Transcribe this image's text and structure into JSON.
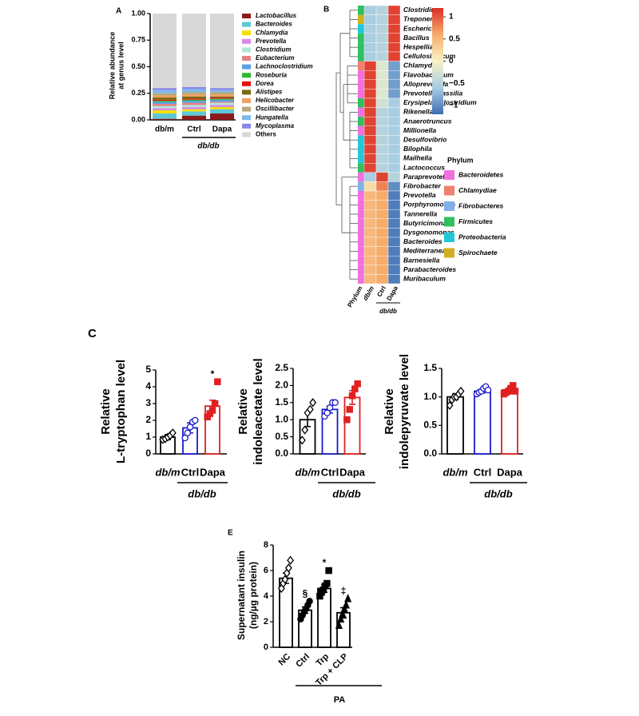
{
  "chart_data": [
    {
      "type": "stacked_bar",
      "panel": "A",
      "ylabel": [
        "Relative abundance",
        "at genus level"
      ],
      "categories": [
        "db/m",
        "Ctrl",
        "Dapa"
      ],
      "group_label": "db/db",
      "ylim": [
        0,
        1
      ],
      "yticks": [
        {
          "value": 0,
          "label": "0.00"
        },
        {
          "value": 0.25,
          "label": "0.25"
        },
        {
          "value": 0.5,
          "label": "0.50"
        },
        {
          "value": 0.75,
          "label": "0.75"
        },
        {
          "value": 1,
          "label": "1.00"
        }
      ],
      "series": [
        {
          "name": "Lactobacillus",
          "color": "#8b1a1a",
          "values": [
            0.01,
            0.04,
            0.06
          ]
        },
        {
          "name": "Bacteroides",
          "color": "#5bc8d8",
          "values": [
            0.05,
            0.04,
            0.04
          ]
        },
        {
          "name": "Chlamydia",
          "color": "#f5e000",
          "values": [
            0.03,
            0.02,
            0.02
          ]
        },
        {
          "name": "Prevotella",
          "color": "#d988e8",
          "values": [
            0.02,
            0.02,
            0.02
          ]
        },
        {
          "name": "Clostridium",
          "color": "#b0e8d8",
          "values": [
            0.02,
            0.02,
            0.02
          ]
        },
        {
          "name": "Eubacterium",
          "color": "#e88080",
          "values": [
            0.02,
            0.02,
            0.01
          ]
        },
        {
          "name": "Lachnoclostridium",
          "color": "#5aa0e0",
          "values": [
            0.02,
            0.02,
            0.02
          ]
        },
        {
          "name": "Roseburia",
          "color": "#2db82d",
          "values": [
            0.01,
            0.01,
            0.01
          ]
        },
        {
          "name": "Dorea",
          "color": "#e81010",
          "values": [
            0.01,
            0.01,
            0.01
          ]
        },
        {
          "name": "Alistipes",
          "color": "#7a6a10",
          "values": [
            0.02,
            0.02,
            0.01
          ]
        },
        {
          "name": "Helicobacter",
          "color": "#f0a060",
          "values": [
            0.02,
            0.02,
            0.02
          ]
        },
        {
          "name": "Oscillibacter",
          "color": "#b8a878",
          "values": [
            0.02,
            0.02,
            0.02
          ]
        },
        {
          "name": "Hungatella",
          "color": "#80b8e8",
          "values": [
            0.03,
            0.03,
            0.02
          ]
        },
        {
          "name": "Mycoplasma",
          "color": "#8888e8",
          "values": [
            0.02,
            0.02,
            0.02
          ]
        },
        {
          "name": "Others",
          "color": "#d8d8d8",
          "values": [
            0.7,
            0.69,
            0.7
          ]
        }
      ]
    },
    {
      "type": "heatmap",
      "panel": "B",
      "columns": [
        "Phylum",
        "db/m",
        "Ctrl",
        "Dapa"
      ],
      "group_label": "db/db",
      "clim": [
        -1.2,
        1.2
      ],
      "cticks": [
        1,
        0.5,
        0,
        {
          "value": -0.5,
          "label": "−0.5"
        },
        {
          "value": -1,
          "label": "−1"
        }
      ],
      "colors": [
        "#3d6db3",
        "#a9cde2",
        "#f7f3c4",
        "#f7ac6c",
        "#dd2e26"
      ],
      "legend_title": "Phylum",
      "phyla": [
        {
          "name": "Bacteroidetes",
          "color": "#f070e0"
        },
        {
          "name": "Chlamydiae",
          "color": "#f08070"
        },
        {
          "name": "Fibrobacteres",
          "color": "#80b0e8"
        },
        {
          "name": "Firmicutes",
          "color": "#30c060"
        },
        {
          "name": "Proteobacteria",
          "color": "#20c8d8"
        },
        {
          "name": "Spirochaete",
          "color": "#d0b020"
        }
      ],
      "rows": [
        {
          "name": "Clostridium",
          "phylum": "Firmicutes",
          "values": [
            -0.6,
            -0.5,
            1.1
          ]
        },
        {
          "name": "Treponema",
          "phylum": "Spirochaete",
          "values": [
            -0.6,
            -0.5,
            1.1
          ]
        },
        {
          "name": "Escherichia",
          "phylum": "Proteobacteria",
          "values": [
            -0.6,
            -0.5,
            1.1
          ]
        },
        {
          "name": "Bacillus",
          "phylum": "Firmicutes",
          "values": [
            -0.6,
            -0.5,
            1.1
          ]
        },
        {
          "name": "Hespellia",
          "phylum": "Firmicutes",
          "values": [
            -0.6,
            -0.5,
            1.1
          ]
        },
        {
          "name": "Cellulosilyticum",
          "phylum": "Firmicutes",
          "values": [
            -0.6,
            -0.5,
            1.1
          ]
        },
        {
          "name": "Chlamydia",
          "phylum": "Chlamydiae",
          "values": [
            1.1,
            -0.2,
            -0.9
          ]
        },
        {
          "name": "Flavobacterium",
          "phylum": "Bacteroidetes",
          "values": [
            1.1,
            -0.2,
            -0.9
          ]
        },
        {
          "name": "Alloprevotella",
          "phylum": "Bacteroidetes",
          "values": [
            1.1,
            -0.2,
            -0.9
          ]
        },
        {
          "name": "Prevotellamassilia",
          "phylum": "Bacteroidetes",
          "values": [
            1.1,
            -0.2,
            -0.9
          ]
        },
        {
          "name": "Erysipelatoclostridium",
          "phylum": "Firmicutes",
          "values": [
            1.1,
            -0.3,
            -0.6
          ]
        },
        {
          "name": "Rikenella",
          "phylum": "Bacteroidetes",
          "values": [
            1.1,
            -0.5,
            -0.6
          ]
        },
        {
          "name": "Anaerotruncus",
          "phylum": "Firmicutes",
          "values": [
            1.1,
            -0.5,
            -0.6
          ]
        },
        {
          "name": "Millionella",
          "phylum": "Bacteroidetes",
          "values": [
            1.1,
            -0.5,
            -0.6
          ]
        },
        {
          "name": "Desulfovibrio",
          "phylum": "Proteobacteria",
          "values": [
            1.1,
            -0.5,
            -0.6
          ]
        },
        {
          "name": "Bilophila",
          "phylum": "Proteobacteria",
          "values": [
            1.1,
            -0.5,
            -0.6
          ]
        },
        {
          "name": "Mailhella",
          "phylum": "Proteobacteria",
          "values": [
            1.1,
            -0.5,
            -0.6
          ]
        },
        {
          "name": "Lactococcus",
          "phylum": "Firmicutes",
          "values": [
            1.1,
            -0.5,
            -0.6
          ]
        },
        {
          "name": "Paraprevotella",
          "phylum": "Bacteroidetes",
          "values": [
            -0.6,
            1.1,
            -0.5
          ]
        },
        {
          "name": "Fibrobacter",
          "phylum": "Fibrobacteres",
          "values": [
            0.2,
            0.8,
            -1.0
          ]
        },
        {
          "name": "Prevotella",
          "phylum": "Bacteroidetes",
          "values": [
            0.5,
            0.6,
            -1.1
          ]
        },
        {
          "name": "Porphyromonas",
          "phylum": "Bacteroidetes",
          "values": [
            0.5,
            0.6,
            -1.1
          ]
        },
        {
          "name": "Tannerella",
          "phylum": "Bacteroidetes",
          "values": [
            0.5,
            0.6,
            -1.1
          ]
        },
        {
          "name": "Butyricimonas",
          "phylum": "Bacteroidetes",
          "values": [
            0.5,
            0.6,
            -1.1
          ]
        },
        {
          "name": "Dysgonomonas",
          "phylum": "Bacteroidetes",
          "values": [
            0.5,
            0.6,
            -1.1
          ]
        },
        {
          "name": "Bacteroides",
          "phylum": "Bacteroidetes",
          "values": [
            0.5,
            0.6,
            -1.1
          ]
        },
        {
          "name": "Mediterranea",
          "phylum": "Bacteroidetes",
          "values": [
            0.5,
            0.6,
            -1.1
          ]
        },
        {
          "name": "Barnesiella",
          "phylum": "Bacteroidetes",
          "values": [
            0.5,
            0.6,
            -1.1
          ]
        },
        {
          "name": "Parabacteroides",
          "phylum": "Bacteroidetes",
          "values": [
            0.5,
            0.6,
            -1.1
          ]
        },
        {
          "name": "Muribaculum",
          "phylum": "Bacteroidetes",
          "values": [
            0.5,
            0.6,
            -1.1
          ]
        }
      ]
    },
    {
      "type": "bar_dot",
      "panel": "C",
      "ylabel": [
        "Relative",
        "L-tryptophan level"
      ],
      "categories": [
        "db/m",
        "Ctrl",
        "Dapa"
      ],
      "group_label": "db/db",
      "colors": [
        "#000000",
        "#1a1ac8",
        "#e02020"
      ],
      "markers": [
        "diamond-open",
        "circle-open",
        "square"
      ],
      "ylim": [
        0,
        5
      ],
      "yticks": [
        0,
        1,
        2,
        3,
        4,
        5
      ],
      "values": [
        1.0,
        1.55,
        2.85
      ],
      "errors": [
        0.15,
        0.3,
        0.35
      ],
      "points": [
        [
          0.85,
          0.9,
          1.0,
          1.1,
          1.25
        ],
        [
          0.95,
          1.25,
          1.6,
          1.9,
          2.0
        ],
        [
          2.2,
          2.4,
          2.6,
          3.0,
          4.3
        ]
      ],
      "annotations": [
        null,
        null,
        "*"
      ]
    },
    {
      "type": "bar_dot",
      "ylabel": [
        "Relative",
        "indoleacetate level"
      ],
      "categories": [
        "db/m",
        "Ctrl",
        "Dapa"
      ],
      "group_label": "db/db",
      "colors": [
        "#000000",
        "#1a1ac8",
        "#e02020"
      ],
      "markers": [
        "diamond-open",
        "circle-open",
        "square"
      ],
      "ylim": [
        0,
        2.5
      ],
      "yticks": [
        {
          "value": 0,
          "label": "0.0"
        },
        0.5,
        {
          "value": 1,
          "label": "1.0"
        },
        1.5,
        {
          "value": 2,
          "label": "2.0"
        },
        2.5
      ],
      "values": [
        1.0,
        1.3,
        1.65
      ],
      "errors": [
        0.2,
        0.1,
        0.2
      ],
      "points": [
        [
          0.4,
          0.7,
          1.2,
          1.3,
          1.5
        ],
        [
          1.1,
          1.2,
          1.35,
          1.5,
          1.5
        ],
        [
          1.0,
          1.3,
          1.7,
          1.9,
          2.05
        ]
      ],
      "annotations": [
        null,
        null,
        null
      ]
    },
    {
      "type": "bar_dot",
      "ylabel": [
        "Relative",
        "indolepyruvate level"
      ],
      "categories": [
        "db/m",
        "Ctrl",
        "Dapa"
      ],
      "group_label": "db/db",
      "colors": [
        "#000000",
        "#1a1ac8",
        "#e02020"
      ],
      "markers": [
        "diamond-open",
        "circle-open",
        "square"
      ],
      "ylim": [
        0,
        1.5
      ],
      "yticks": [
        {
          "value": 0,
          "label": "0.0"
        },
        0.5,
        {
          "value": 1,
          "label": "1.0"
        },
        1.5
      ],
      "values": [
        1.0,
        1.1,
        1.12
      ],
      "errors": [
        0.05,
        0.03,
        0.04
      ],
      "points": [
        [
          0.85,
          0.95,
          1.0,
          1.0,
          1.05,
          1.1
        ],
        [
          1.05,
          1.08,
          1.1,
          1.15,
          1.18,
          1.12
        ],
        [
          1.05,
          1.08,
          1.1,
          1.15,
          1.2,
          1.1
        ]
      ],
      "annotations": [
        null,
        null,
        null
      ]
    },
    {
      "type": "bar_dot",
      "panel": "E",
      "ylabel": [
        "Supernatant insulin",
        "(ng/µg protein)"
      ],
      "categories": [
        "NC",
        "Ctrl",
        "Trp",
        "Trp + CLP"
      ],
      "group_label": "PA",
      "colors": [
        "#000000",
        "#000000",
        "#000000",
        "#000000"
      ],
      "markers": [
        "diamond-open",
        "circle",
        "square",
        "triangle"
      ],
      "ylim": [
        0,
        8
      ],
      "yticks": [
        0,
        2,
        4,
        6,
        8
      ],
      "values": [
        5.4,
        2.9,
        4.6,
        2.7
      ],
      "errors": [
        0.4,
        0.25,
        0.3,
        0.4
      ],
      "points": [
        [
          4.6,
          5.0,
          5.3,
          5.8,
          6.2,
          6.8
        ],
        [
          2.2,
          2.5,
          2.8,
          3.0,
          3.3,
          3.6
        ],
        [
          4.0,
          4.3,
          4.5,
          4.8,
          5.0,
          6.0
        ],
        [
          1.7,
          2.2,
          2.6,
          3.0,
          3.3,
          3.8
        ]
      ],
      "annotations": [
        null,
        "§",
        "*",
        "‡"
      ]
    }
  ]
}
